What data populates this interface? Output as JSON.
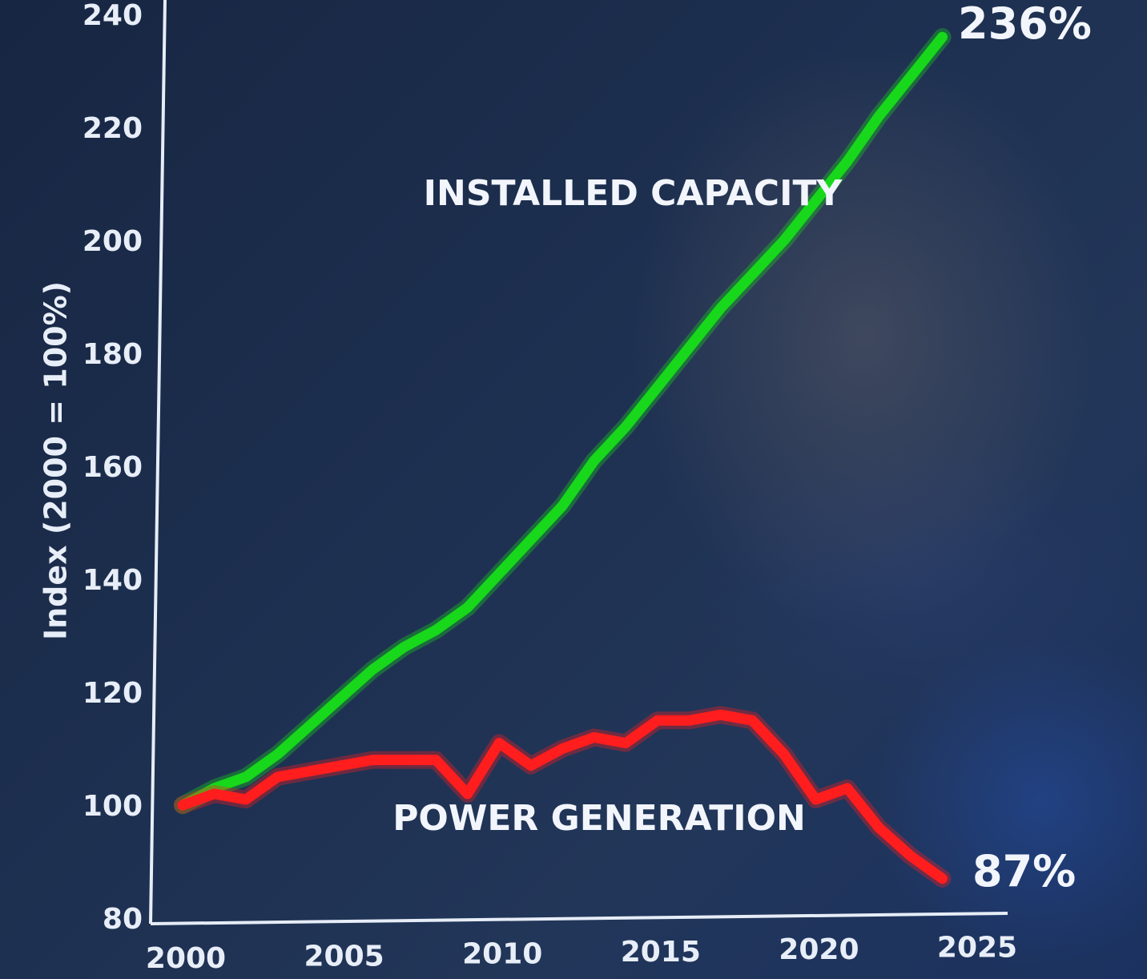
{
  "chart_data": {
    "type": "line",
    "ylabel": "Index (2000 = 100%)",
    "xlabel": "",
    "xlim": [
      2000,
      2025
    ],
    "ylim": [
      80,
      240
    ],
    "x_ticks": [
      2000,
      2005,
      2010,
      2015,
      2020,
      2025
    ],
    "y_ticks": [
      80,
      100,
      120,
      140,
      160,
      180,
      200,
      220,
      240
    ],
    "x_tick_labels": [
      "2000",
      "2005",
      "2010",
      "2015",
      "2020",
      "2025"
    ],
    "y_tick_labels": [
      "80",
      "100",
      "120",
      "140",
      "160",
      "180",
      "200",
      "220",
      "240"
    ],
    "series": [
      {
        "name": "INSTALLED CAPACITY",
        "color": "#17d81a",
        "x": [
          2000,
          2001,
          2002,
          2003,
          2004,
          2005,
          2006,
          2007,
          2008,
          2009,
          2010,
          2011,
          2012,
          2013,
          2014,
          2015,
          2016,
          2017,
          2018,
          2019,
          2020,
          2021,
          2022,
          2023,
          2024
        ],
        "values": [
          100,
          103,
          105,
          109,
          114,
          119,
          124,
          128,
          131,
          135,
          141,
          147,
          153,
          161,
          167,
          174,
          181,
          188,
          194,
          200,
          207,
          214,
          222,
          229,
          236
        ],
        "end_label": "236%"
      },
      {
        "name": "POWER GENERATION",
        "color": "#ff1d1d",
        "x": [
          2000,
          2001,
          2002,
          2003,
          2004,
          2005,
          2006,
          2007,
          2008,
          2009,
          2010,
          2011,
          2012,
          2013,
          2014,
          2015,
          2016,
          2017,
          2018,
          2019,
          2020,
          2021,
          2022,
          2023,
          2024
        ],
        "values": [
          100,
          102,
          101,
          105,
          106,
          107,
          108,
          108,
          108,
          102,
          111,
          107,
          110,
          112,
          111,
          115,
          115,
          116,
          115,
          109,
          101,
          103,
          96,
          91,
          87
        ],
        "end_label": "87%"
      }
    ],
    "grid": false,
    "legend": "inline"
  }
}
